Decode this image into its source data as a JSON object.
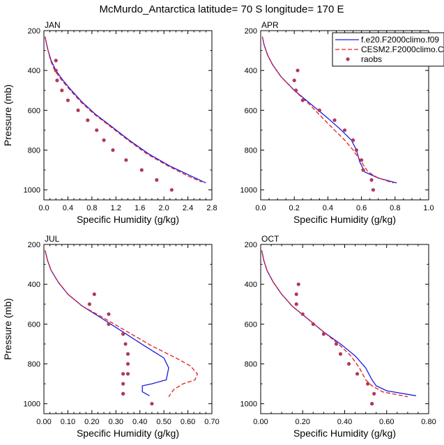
{
  "figure": {
    "title": "McMurdo_Antarctica  latitude= 70 S longitude= 170 E"
  },
  "legend": {
    "items": [
      {
        "label": "f.e20.F2000climo.f09",
        "color": "#1a1ae6",
        "style": "solid"
      },
      {
        "label": "CESM2.F2000climo.C",
        "color": "#e61a1a",
        "style": "dashed"
      },
      {
        "label": "raobs",
        "color": "#b03a5b",
        "style": "marker"
      }
    ]
  },
  "chart_data": [
    {
      "type": "line",
      "panel": "JAN",
      "xlabel": "Specific Humidity (g/kg)",
      "ylabel": "Pressure (mb)",
      "xlim": [
        0,
        2.8
      ],
      "ylim": [
        200,
        1050
      ],
      "xticks": [
        0,
        0.4,
        0.8,
        1.2,
        1.6,
        2.0,
        2.4,
        2.8
      ],
      "xticklabels": [
        "0.0",
        "0.4",
        "0.8",
        "1.2",
        "1.6",
        "2.0",
        "2.4",
        "2.8"
      ],
      "yticks": [
        200,
        400,
        600,
        800,
        1000
      ],
      "series": [
        {
          "name": "f.e20.F2000climo.f09",
          "color": "#1a1ae6",
          "style": "solid",
          "x": [
            0.02,
            0.04,
            0.07,
            0.12,
            0.2,
            0.32,
            0.46,
            0.64,
            0.86,
            1.12,
            1.42,
            1.75,
            2.1,
            2.45,
            2.7
          ],
          "y": [
            230,
            260,
            300,
            350,
            400,
            450,
            500,
            560,
            620,
            680,
            750,
            820,
            880,
            930,
            965
          ]
        },
        {
          "name": "CESM2.F2000climo.C",
          "color": "#e61a1a",
          "style": "dashed",
          "x": [
            0.02,
            0.04,
            0.07,
            0.11,
            0.18,
            0.3,
            0.44,
            0.62,
            0.84,
            1.1,
            1.4,
            1.72,
            2.07,
            2.4,
            2.63
          ],
          "y": [
            230,
            260,
            300,
            350,
            400,
            450,
            500,
            560,
            620,
            680,
            750,
            820,
            880,
            930,
            960
          ]
        },
        {
          "name": "raobs",
          "color": "#b03a5b",
          "style": "marker",
          "x": [
            0.2,
            0.2,
            0.22,
            0.3,
            0.4,
            0.57,
            0.73,
            0.88,
            1.0,
            1.15,
            1.37,
            1.63,
            1.88,
            2.13
          ],
          "y": [
            350,
            400,
            450,
            500,
            550,
            600,
            650,
            700,
            750,
            800,
            850,
            900,
            950,
            1000
          ]
        }
      ]
    },
    {
      "type": "line",
      "panel": "APR",
      "xlabel": "Specific Humidity (g/kg)",
      "ylabel": "",
      "xlim": [
        0,
        1.0
      ],
      "ylim": [
        200,
        1050
      ],
      "xticks": [
        0,
        0.2,
        0.4,
        0.6,
        0.8,
        1.0
      ],
      "xticklabels": [
        "0.0",
        "0.2",
        "0.4",
        "0.6",
        "0.8",
        "1.0"
      ],
      "yticks": [
        200,
        400,
        600,
        800,
        1000
      ],
      "series": [
        {
          "name": "f.e20.F2000climo.f09",
          "color": "#1a1ae6",
          "style": "solid",
          "x": [
            0.01,
            0.02,
            0.04,
            0.07,
            0.12,
            0.2,
            0.3,
            0.4,
            0.48,
            0.54,
            0.57,
            0.59,
            0.62,
            0.7,
            0.81
          ],
          "y": [
            230,
            270,
            320,
            370,
            430,
            500,
            570,
            640,
            700,
            750,
            800,
            860,
            910,
            940,
            965
          ]
        },
        {
          "name": "CESM2.F2000climo.C",
          "color": "#e61a1a",
          "style": "dashed",
          "x": [
            0.01,
            0.02,
            0.04,
            0.07,
            0.12,
            0.2,
            0.29,
            0.37,
            0.44,
            0.5,
            0.55,
            0.6,
            0.64,
            0.7,
            0.79
          ],
          "y": [
            230,
            270,
            320,
            370,
            430,
            500,
            570,
            640,
            700,
            750,
            800,
            860,
            910,
            940,
            965
          ]
        },
        {
          "name": "raobs",
          "color": "#b03a5b",
          "style": "marker",
          "x": [
            0.22,
            0.2,
            0.21,
            0.25,
            0.35,
            0.44,
            0.5,
            0.55,
            0.57,
            0.6,
            0.61,
            0.66,
            0.67
          ],
          "y": [
            400,
            450,
            500,
            550,
            600,
            650,
            700,
            750,
            800,
            850,
            900,
            950,
            1000
          ]
        }
      ]
    },
    {
      "type": "line",
      "panel": "JUL",
      "xlabel": "Specific Humidity (g/kg)",
      "ylabel": "Pressure (mb)",
      "xlim": [
        0,
        0.7
      ],
      "ylim": [
        200,
        1050
      ],
      "xticks": [
        0,
        0.1,
        0.2,
        0.3,
        0.4,
        0.5,
        0.6,
        0.7
      ],
      "xticklabels": [
        "0.00",
        "0.10",
        "0.20",
        "0.30",
        "0.40",
        "0.50",
        "0.60",
        "0.70"
      ],
      "yticks": [
        200,
        400,
        600,
        800,
        1000
      ],
      "series": [
        {
          "name": "f.e20.F2000climo.f09",
          "color": "#1a1ae6",
          "style": "solid",
          "x": [
            0.005,
            0.015,
            0.03,
            0.06,
            0.1,
            0.16,
            0.24,
            0.33,
            0.42,
            0.5,
            0.52,
            0.51,
            0.45,
            0.41,
            0.41,
            0.44
          ],
          "y": [
            230,
            280,
            330,
            390,
            450,
            510,
            570,
            640,
            710,
            770,
            820,
            880,
            900,
            910,
            940,
            960
          ]
        },
        {
          "name": "CESM2.F2000climo.C",
          "color": "#e61a1a",
          "style": "dashed",
          "x": [
            0.005,
            0.015,
            0.03,
            0.06,
            0.1,
            0.16,
            0.25,
            0.35,
            0.45,
            0.55,
            0.61,
            0.64,
            0.63,
            0.58,
            0.54,
            0.52
          ],
          "y": [
            230,
            280,
            330,
            390,
            450,
            510,
            570,
            640,
            710,
            770,
            810,
            850,
            880,
            900,
            930,
            965
          ]
        },
        {
          "name": "raobs",
          "color": "#b03a5b",
          "style": "marker",
          "x": [
            0.21,
            0.19,
            0.27,
            0.27,
            0.33,
            0.34,
            0.35,
            0.35,
            0.35,
            0.33,
            0.33,
            0.33,
            0.33,
            0.45
          ],
          "y": [
            450,
            500,
            550,
            600,
            650,
            700,
            750,
            800,
            850,
            850,
            900,
            950,
            950,
            1000
          ]
        }
      ]
    },
    {
      "type": "line",
      "panel": "OCT",
      "xlabel": "Specific Humidity (g/kg)",
      "ylabel": "",
      "xlim": [
        0,
        0.8
      ],
      "ylim": [
        200,
        1050
      ],
      "xticks": [
        0,
        0.2,
        0.4,
        0.6,
        0.8
      ],
      "xticklabels": [
        "0.00",
        "0.20",
        "0.40",
        "0.60",
        "0.80"
      ],
      "yticks": [
        200,
        400,
        600,
        800,
        1000
      ],
      "series": [
        {
          "name": "f.e20.F2000climo.f09",
          "color": "#1a1ae6",
          "style": "solid",
          "x": [
            0.005,
            0.015,
            0.03,
            0.06,
            0.1,
            0.15,
            0.22,
            0.3,
            0.38,
            0.45,
            0.5,
            0.53,
            0.55,
            0.6,
            0.74
          ],
          "y": [
            230,
            280,
            330,
            390,
            450,
            510,
            570,
            640,
            700,
            760,
            820,
            880,
            910,
            935,
            960
          ]
        },
        {
          "name": "CESM2.F2000climo.C",
          "color": "#e61a1a",
          "style": "dashed",
          "x": [
            0.005,
            0.015,
            0.03,
            0.06,
            0.1,
            0.15,
            0.22,
            0.3,
            0.37,
            0.43,
            0.47,
            0.5,
            0.53,
            0.58,
            0.7
          ],
          "y": [
            230,
            280,
            330,
            390,
            450,
            510,
            570,
            640,
            700,
            760,
            820,
            880,
            910,
            940,
            965
          ]
        },
        {
          "name": "raobs",
          "color": "#b03a5b",
          "style": "marker",
          "x": [
            0.18,
            0.17,
            0.17,
            0.2,
            0.25,
            0.3,
            0.36,
            0.38,
            0.42,
            0.46,
            0.51,
            0.54,
            0.53,
            0.53
          ],
          "y": [
            400,
            450,
            500,
            550,
            600,
            650,
            700,
            750,
            800,
            850,
            900,
            950,
            1000,
            1000
          ]
        }
      ]
    }
  ]
}
